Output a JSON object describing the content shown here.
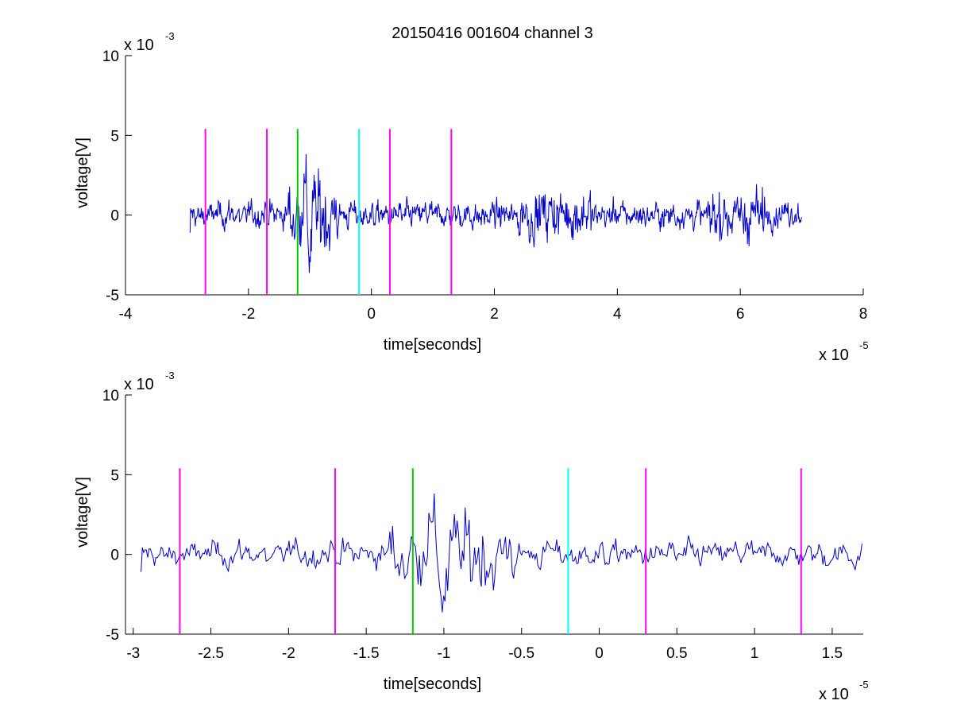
{
  "figure": {
    "title": "20150416 001604 channel 3"
  },
  "chart_data": [
    {
      "type": "line",
      "title": "20150416 001604 channel 3",
      "xlabel": "time[seconds]",
      "ylabel": "voltage[V]",
      "x_multiplier_label": "x 10",
      "x_multiplier_exp": "-5",
      "y_multiplier_label": "x 10",
      "y_multiplier_exp": "-3",
      "xlim": [
        -4,
        8
      ],
      "ylim": [
        -5,
        10
      ],
      "xticks": [
        -4,
        -2,
        0,
        2,
        4,
        6,
        8
      ],
      "xtick_labels": [
        "-4",
        "-2",
        "0",
        "2",
        "4",
        "6",
        "8"
      ],
      "yticks": [
        -5,
        0,
        5,
        10
      ],
      "ytick_labels": [
        "-5",
        "0",
        "5",
        "10"
      ],
      "signal": {
        "color": "#0000cc",
        "x_start": -2.95,
        "x_end": 7.0
      },
      "markers": [
        {
          "x": -2.7,
          "color": "#ff00ff",
          "ymin": -5,
          "ymax": 5.4
        },
        {
          "x": -1.7,
          "color": "#ff00ff",
          "ymin": -5,
          "ymax": 5.4
        },
        {
          "x": -1.2,
          "color": "#00cc00",
          "ymin": -5,
          "ymax": 5.4
        },
        {
          "x": -0.2,
          "color": "#00ffff",
          "ymin": -5,
          "ymax": 5.4
        },
        {
          "x": 0.3,
          "color": "#ff00ff",
          "ymin": -5,
          "ymax": 5.4
        },
        {
          "x": 1.3,
          "color": "#ff00ff",
          "ymin": -5,
          "ymax": 5.4
        }
      ]
    },
    {
      "type": "line",
      "title": "",
      "xlabel": "time[seconds]",
      "ylabel": "voltage[V]",
      "x_multiplier_label": "x 10",
      "x_multiplier_exp": "-5",
      "y_multiplier_label": "x 10",
      "y_multiplier_exp": "-3",
      "xlim": [
        -3.05,
        1.7
      ],
      "ylim": [
        -5,
        10
      ],
      "xticks": [
        -3,
        -2.5,
        -2,
        -1.5,
        -1,
        -0.5,
        0,
        0.5,
        1,
        1.5
      ],
      "xtick_labels": [
        "-3",
        "-2.5",
        "-2",
        "-1.5",
        "-1",
        "-0.5",
        "0",
        "0.5",
        "1",
        "1.5"
      ],
      "yticks": [
        -5,
        0,
        5,
        10
      ],
      "ytick_labels": [
        "-5",
        "0",
        "5",
        "10"
      ],
      "signal": {
        "color": "#0000cc",
        "x_start": -2.95,
        "x_end": 1.7
      },
      "markers": [
        {
          "x": -2.7,
          "color": "#ff00ff",
          "ymin": -5,
          "ymax": 5.4
        },
        {
          "x": -1.7,
          "color": "#ff00ff",
          "ymin": -5,
          "ymax": 5.4
        },
        {
          "x": -1.2,
          "color": "#00cc00",
          "ymin": -5,
          "ymax": 5.4
        },
        {
          "x": -0.2,
          "color": "#00ffff",
          "ymin": -5,
          "ymax": 5.4
        },
        {
          "x": 0.3,
          "color": "#ff00ff",
          "ymin": -5,
          "ymax": 5.4
        },
        {
          "x": 1.3,
          "color": "#ff00ff",
          "ymin": -5,
          "ymax": 5.4
        }
      ]
    }
  ]
}
